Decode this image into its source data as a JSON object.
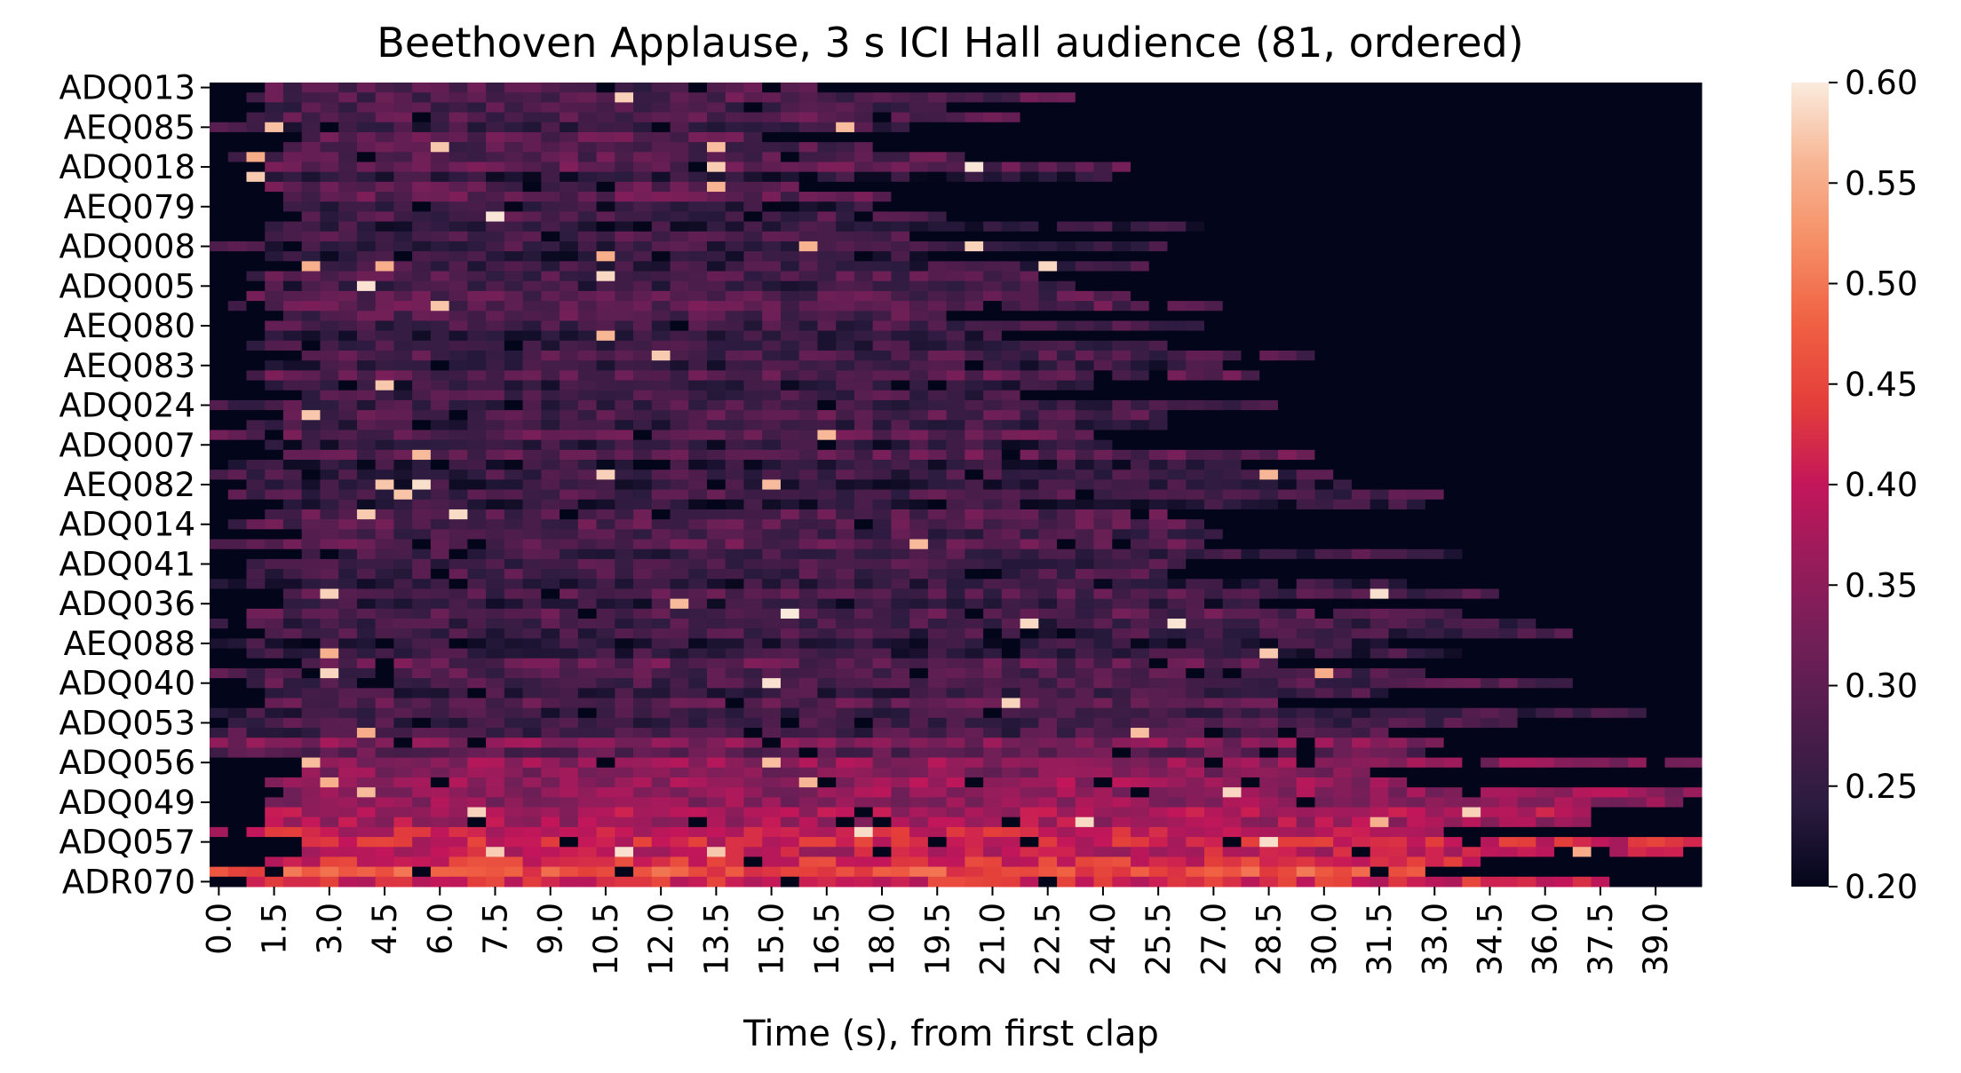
{
  "chart_data": {
    "type": "heatmap",
    "title": "Beethoven Applause, 3 s ICI Hall audience (81, ordered)",
    "xlabel": "Time (s), from first clap",
    "ylabel": "",
    "x_tick_labels": [
      "0.0",
      "1.5",
      "3.0",
      "4.5",
      "6.0",
      "7.5",
      "9.0",
      "10.5",
      "12.0",
      "13.5",
      "15.0",
      "16.5",
      "18.0",
      "19.5",
      "21.0",
      "22.5",
      "24.0",
      "25.5",
      "27.0",
      "28.5",
      "30.0",
      "31.5",
      "33.0",
      "34.5",
      "36.0",
      "37.5",
      "39.0"
    ],
    "y_tick_labels": [
      "ADQ013",
      "AEQ085",
      "ADQ018",
      "AEQ079",
      "ADQ008",
      "ADQ005",
      "AEQ080",
      "AEQ083",
      "ADQ024",
      "ADQ007",
      "AEQ082",
      "ADQ014",
      "ADQ041",
      "ADQ036",
      "AEQ088",
      "ADQ040",
      "ADQ053",
      "ADQ056",
      "ADQ049",
      "ADQ057",
      "ADR070"
    ],
    "n_rows": 81,
    "x_range": [
      0,
      40.5
    ],
    "x_step": 0.5,
    "color_range": [
      0.2,
      0.6
    ],
    "colorbar_ticks": [
      "0.20",
      "0.25",
      "0.30",
      "0.35",
      "0.40",
      "0.45",
      "0.50",
      "0.55",
      "0.60"
    ],
    "colormap": "rocket",
    "colormap_stops": [
      "#03051a",
      "#2b1b3f",
      "#4c1d4b",
      "#701f57",
      "#961c5b",
      "#c3165a",
      "#e43e3a",
      "#f06043",
      "#f58e65",
      "#f7b593",
      "#faebdd"
    ]
  }
}
